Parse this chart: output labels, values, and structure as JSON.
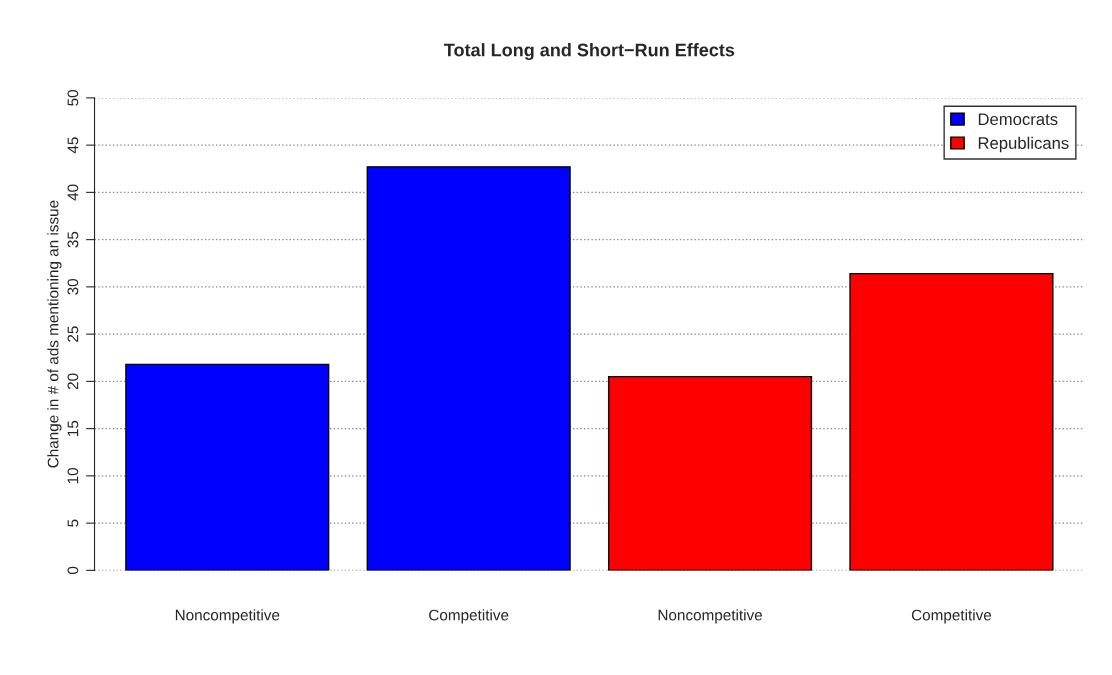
{
  "chart_data": {
    "type": "bar",
    "title": "Total Long and Short−Run Effects",
    "ylabel": "Change in # of ads mentioning an issue",
    "categories": [
      "Noncompetitive",
      "Competitive",
      "Noncompetitive",
      "Competitive"
    ],
    "series": [
      {
        "name": "Democrats",
        "color": "#0000ff",
        "values": [
          21.8,
          42.7,
          null,
          null
        ]
      },
      {
        "name": "Republicans",
        "color": "#ff0000",
        "values": [
          null,
          null,
          20.5,
          31.4
        ]
      }
    ],
    "ylim": [
      0,
      50
    ],
    "yticks": [
      0,
      5,
      10,
      15,
      20,
      25,
      30,
      35,
      40,
      45,
      50
    ],
    "grid": "y",
    "legend": "top right"
  }
}
